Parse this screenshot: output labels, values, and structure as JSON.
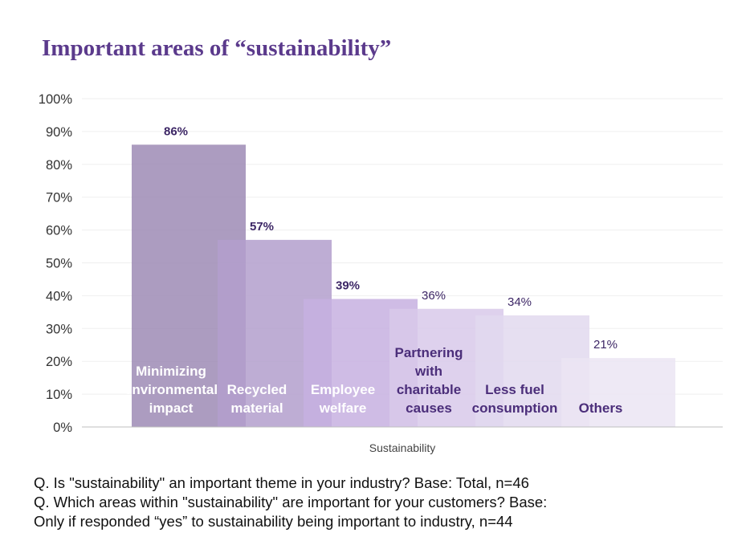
{
  "chart_data": {
    "type": "bar",
    "title": "Important areas of “sustainability”",
    "xlabel": "Sustainability",
    "ylabel": "",
    "ylim": [
      0,
      100
    ],
    "yticks": [
      "0%",
      "10%",
      "20%",
      "30%",
      "40%",
      "50%",
      "60%",
      "70%",
      "80%",
      "90%",
      "100%"
    ],
    "grid": true,
    "categories": [
      "Minimizing environmental impact",
      "Recycled material",
      "Employee welfare",
      "Partnering with charitable causes",
      "Less fuel consumption",
      "Others"
    ],
    "category_lines": [
      [
        "Minimizing",
        "environmental",
        "impact"
      ],
      [
        "Recycled",
        "material"
      ],
      [
        "Employee",
        "welfare"
      ],
      [
        "Partnering",
        "with",
        "charitable",
        "causes"
      ],
      [
        "Less fuel",
        "consumption"
      ],
      [
        "Others"
      ]
    ],
    "values": [
      86,
      57,
      39,
      36,
      34,
      21
    ],
    "value_labels": [
      "86%",
      "57%",
      "39%",
      "36%",
      "34%",
      "21%"
    ],
    "bar_colors": [
      "#9d8bb5",
      "#b39fcc",
      "#c7b0e0",
      "#d8c9ea",
      "#e2d9ef",
      "#ebe5f3"
    ],
    "category_label_colors": [
      "#ffffff",
      "#ffffff",
      "#ffffff",
      "#4b2e7a",
      "#4b2e7a",
      "#4b2e7a"
    ],
    "value_label_color": "#3d2766"
  },
  "footnotes": {
    "line1": "Q. Is \"sustainability\" an important theme in your industry? Base: Total, n=46",
    "line2": "Q. Which areas within \"sustainability\" are important for your customers?  Base:",
    "line3": "Only if responded “yes” to sustainability being important to industry, n=44"
  }
}
